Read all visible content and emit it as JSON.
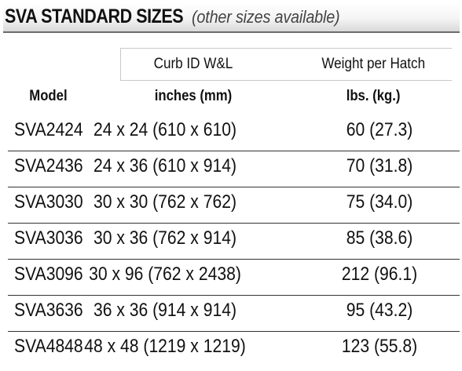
{
  "title": {
    "main": "SVA STANDARD SIZES",
    "sub": "(other sizes available)"
  },
  "headers": {
    "curb_label": "Curb ID  W&L",
    "weight_label": "Weight per Hatch",
    "model": "Model",
    "curb_units": "inches (mm)",
    "weight_units": "lbs. (kg.)"
  },
  "rows": [
    {
      "model": "SVA2424",
      "size": "24 x 24 (610 x 610)",
      "weight": "60 (27.3)"
    },
    {
      "model": "SVA2436",
      "size": "24 x 36 (610 x 914)",
      "weight": "70 (31.8)"
    },
    {
      "model": "SVA3030",
      "size": "30 x 30 (762 x 762)",
      "weight": "75 (34.0)"
    },
    {
      "model": "SVA3036",
      "size": "30 x 36 (762 x 914)",
      "weight": "85 (38.6)"
    },
    {
      "model": "SVA3096",
      "size": "30 x 96 (762 x 2438)",
      "weight": "212 (96.1)"
    },
    {
      "model": "SVA3636",
      "size": "36 x 36 (914 x 914)",
      "weight": "95 (43.2)"
    },
    {
      "model": "SVA4848",
      "size": "48 x 48 (1219 x 1219)",
      "weight": "123 (55.8)"
    }
  ]
}
